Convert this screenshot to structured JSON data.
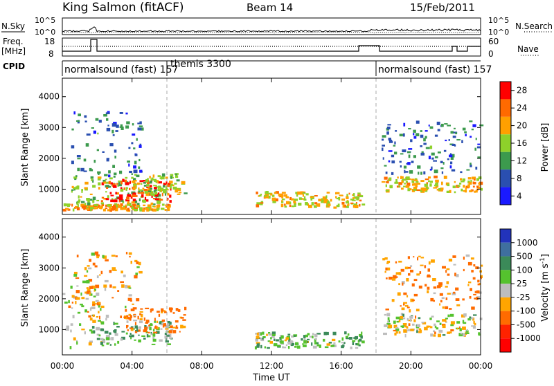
{
  "header": {
    "station": "King Salmon (fitACF)",
    "beam": "Beam 14",
    "date": "15/Feb/2011"
  },
  "strips": {
    "nsky_label": "N.Sky",
    "nsky_ticks": [
      "10^5",
      "10^0"
    ],
    "nsearch_label": "N.Search",
    "nsearch_ticks": [
      "10^5",
      "10^0"
    ],
    "freq_label_1": "Freq.",
    "freq_label_2": "[MHz]",
    "freq_ticks": [
      "18",
      "8"
    ],
    "nave_label": "Nave",
    "nave_ticks": [
      "60",
      "0"
    ],
    "cpid_label": "CPID",
    "cpid_segments": [
      {
        "label": "normalsound (fast) 157",
        "start_h": 0
      },
      {
        "label": "themis 3300",
        "start_h": 6
      },
      {
        "label": "normalsound (fast) 157",
        "start_h": 18
      }
    ]
  },
  "axes": {
    "ylabel": "Slant Range [km]",
    "xlabel": "Time UT",
    "x_ticks": [
      "00:00",
      "04:00",
      "08:00",
      "12:00",
      "16:00",
      "20:00",
      "00:00"
    ],
    "y_ticks": [
      "1000",
      "2000",
      "3000",
      "4000"
    ]
  },
  "colorbars": {
    "power": {
      "label": "Power [dB]",
      "ticks": [
        "28",
        "24",
        "20",
        "16",
        "12",
        "8",
        "4"
      ],
      "colors": [
        "#ff0000",
        "#ff6a00",
        "#ffa000",
        "#8ed12a",
        "#3c9a4d",
        "#2a4fb0",
        "#1a1aff"
      ]
    },
    "velocity": {
      "label_main": "Velocity",
      "label_units": "[m s",
      "label_exp": "-1",
      "label_close": "]",
      "ticks": [
        "1000",
        "500",
        "100",
        "25",
        "-25",
        "-100",
        "-500",
        "-1000"
      ],
      "colors": [
        "#2233bb",
        "#3f6f9f",
        "#3b8a59",
        "#55c22e",
        "#bdbdbd",
        "#ffa500",
        "#ff6b00",
        "#ff2200",
        "#ff0000"
      ]
    }
  },
  "chart_data": [
    {
      "type": "heatmap",
      "title": "Power",
      "xlabel": "Time UT",
      "ylabel": "Slant Range [km]",
      "xlim": [
        0,
        24
      ],
      "ylim": [
        180,
        4600
      ],
      "colorbar": {
        "label": "Power [dB]",
        "range": [
          0,
          30
        ]
      },
      "regions": [
        {
          "t": [
            0,
            6.1
          ],
          "r": [
            300,
            500
          ],
          "value": 20
        },
        {
          "t": [
            0.5,
            5.8
          ],
          "r": [
            500,
            1400
          ],
          "value": 14
        },
        {
          "t": [
            2.2,
            6.2
          ],
          "r": [
            600,
            1300
          ],
          "value": 26
        },
        {
          "t": [
            4.0,
            7.0
          ],
          "r": [
            800,
            1500
          ],
          "value": 16
        },
        {
          "t": [
            0.5,
            4.5
          ],
          "r": [
            1400,
            3500
          ],
          "value": 8
        },
        {
          "t": [
            11.0,
            17.2
          ],
          "r": [
            400,
            900
          ],
          "value": 18
        },
        {
          "t": [
            18.3,
            24
          ],
          "r": [
            900,
            1400
          ],
          "value": 18
        },
        {
          "t": [
            18.3,
            24
          ],
          "r": [
            1500,
            3200
          ],
          "value": 8
        }
      ]
    },
    {
      "type": "heatmap",
      "title": "Velocity",
      "xlabel": "Time UT",
      "ylabel": "Slant Range [km]",
      "xlim": [
        0,
        24
      ],
      "ylim": [
        180,
        4600
      ],
      "colorbar": {
        "label": "Velocity [m s-1]",
        "range": [
          -1000,
          1000
        ]
      },
      "regions": [
        {
          "t": [
            0,
            2.5
          ],
          "r": [
            400,
            2500
          ],
          "value": 0
        },
        {
          "t": [
            1.5,
            6.2
          ],
          "r": [
            500,
            1300
          ],
          "value": 90
        },
        {
          "t": [
            3.5,
            7.0
          ],
          "r": [
            900,
            1700
          ],
          "value": -150
        },
        {
          "t": [
            0.5,
            4.5
          ],
          "r": [
            1400,
            3500
          ],
          "value": -60
        },
        {
          "t": [
            11.0,
            17.2
          ],
          "r": [
            400,
            900
          ],
          "value": 60
        },
        {
          "t": [
            18.3,
            24
          ],
          "r": [
            800,
            1500
          ],
          "value": 0
        },
        {
          "t": [
            18.3,
            24
          ],
          "r": [
            1600,
            3400
          ],
          "value": -120
        }
      ]
    }
  ]
}
